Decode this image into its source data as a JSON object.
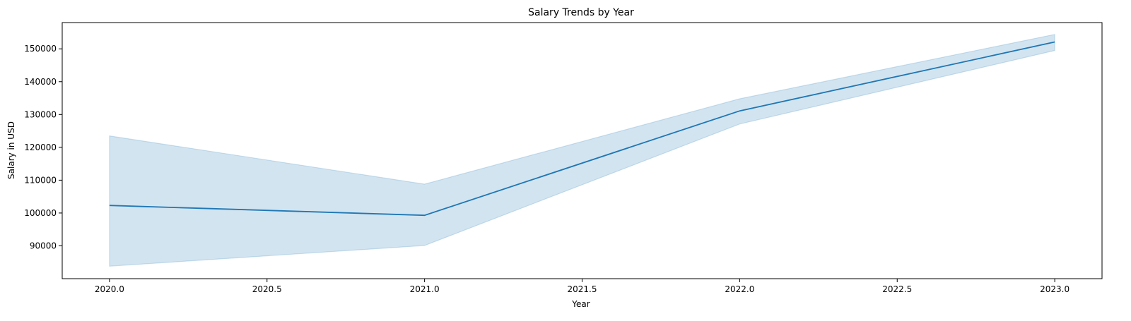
{
  "chart_data": {
    "type": "line",
    "title": "Salary Trends by Year",
    "xlabel": "Year",
    "ylabel": "Salary in USD",
    "xlim": [
      1985.85,
      2023.15
    ],
    "ylim": [
      80000,
      158000
    ],
    "x_ticks": [
      2020.0,
      2020.5,
      2021.0,
      2021.5,
      2022.0,
      2022.5,
      2023.0
    ],
    "x_tick_labels": [
      "2020.0",
      "2020.5",
      "2021.0",
      "2021.5",
      "2022.0",
      "2022.5",
      "2023.0"
    ],
    "y_ticks": [
      90000,
      100000,
      110000,
      120000,
      130000,
      140000,
      150000
    ],
    "y_tick_labels": [
      "90000",
      "100000",
      "110000",
      "120000",
      "130000",
      "140000",
      "150000"
    ],
    "grid": false,
    "series": [
      {
        "x": [
          2020,
          2021,
          2022,
          2023
        ],
        "y": [
          102300,
          99300,
          131100,
          152100
        ],
        "ci_lower": [
          83800,
          90100,
          127100,
          149500
        ],
        "ci_upper": [
          123500,
          108800,
          134800,
          154400
        ],
        "color": "#1f77b4",
        "band_color": "#1f77b4"
      }
    ]
  }
}
